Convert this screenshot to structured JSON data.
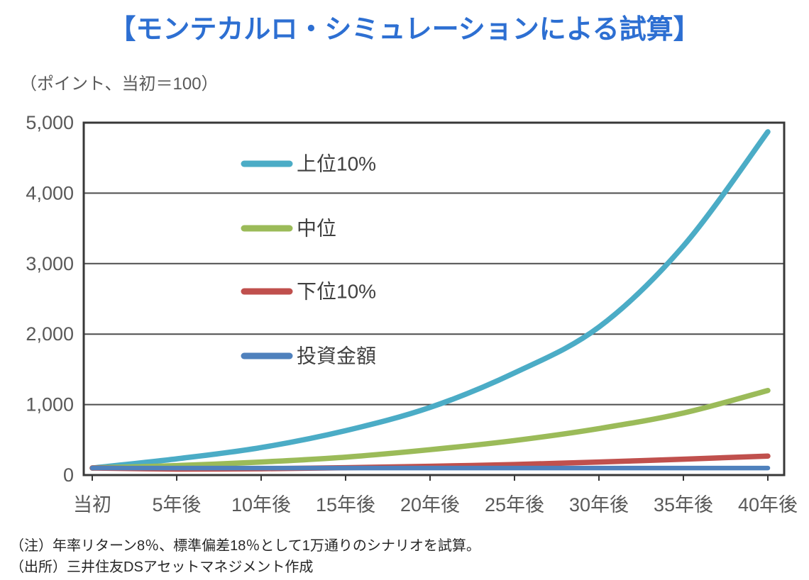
{
  "title": "【モンテカルロ・シミュレーションによる試算】",
  "unit_label": "（ポイント、当初＝100）",
  "notes": {
    "note": "（注）年率リターン8％、標準偏差18％として1万通りのシナリオを試算。",
    "source": "（出所）三井住友DSアセットマネジメント作成"
  },
  "colors": {
    "title_text": "#2d6fd2",
    "axis_text": "#595959",
    "legend_text": "#404040",
    "note_text": "#262626",
    "plot_border": "#383838",
    "gridline": "#4d4d4d",
    "background": "#ffffff"
  },
  "chart_data": {
    "type": "line",
    "categories": [
      "当初",
      "5年後",
      "10年後",
      "15年後",
      "20年後",
      "25年後",
      "30年後",
      "35年後",
      "40年後"
    ],
    "series": [
      {
        "key": "top10",
        "name": "上位10%",
        "color": "#4BACC6",
        "values": [
          100,
          230,
          390,
          630,
          960,
          1450,
          2100,
          3250,
          4870
        ]
      },
      {
        "key": "median",
        "name": "中位",
        "color": "#9BBB59",
        "values": [
          100,
          135,
          185,
          255,
          360,
          490,
          660,
          880,
          1200
        ]
      },
      {
        "key": "bottom10",
        "name": "下位10%",
        "color": "#C0504D",
        "values": [
          100,
          85,
          90,
          105,
          125,
          150,
          185,
          225,
          270
        ]
      },
      {
        "key": "principal",
        "name": "投資金額",
        "color": "#4F81BD",
        "values": [
          100,
          100,
          100,
          100,
          100,
          100,
          100,
          100,
          100
        ]
      }
    ],
    "xlabel": "",
    "ylabel": "（ポイント、当初＝100）",
    "ylim": [
      0,
      5000
    ],
    "ytick_step": 1000,
    "ytick_labels": [
      "0",
      "1,000",
      "2,000",
      "3,000",
      "4,000",
      "5,000"
    ],
    "grid": true,
    "legend_position": "inside-upper-left"
  }
}
